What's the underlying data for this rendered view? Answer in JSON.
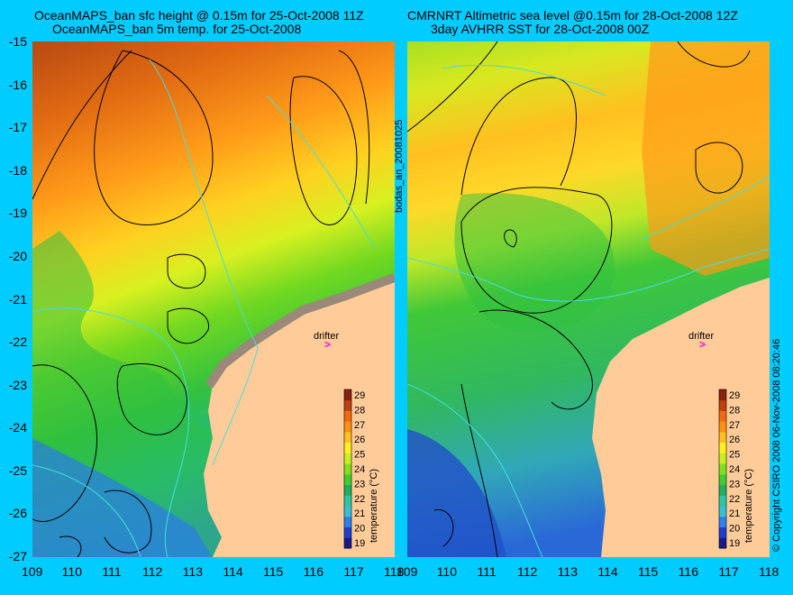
{
  "left_panel": {
    "title_line1": "OceanMAPS_ban sfc height @ 0.15m for 25-Oct-2008 11Z",
    "title_line2": "OceanMAPS_ban 5m temp. for 25-Oct-2008",
    "drifter_label": "drifter",
    "drifter_marker": ">"
  },
  "right_panel": {
    "title_line1": "CMRNRT Altimetric sea level  @0.15m  for 28-Oct-2008 12Z",
    "title_line2": "3day AVHRR SST for 28-Oct-2008 00Z",
    "drifter_label": "drifter",
    "drifter_marker": ">"
  },
  "center_vertical_label": "bodas_an_20081025",
  "right_vertical_label": "© Copyright CSIRO 2008   06-Nov-2008 08:20:46",
  "axes": {
    "y_ticks": [
      "-15",
      "-16",
      "-17",
      "-18",
      "-19",
      "-20",
      "-21",
      "-22",
      "-23",
      "-24",
      "-25",
      "-26",
      "-27"
    ],
    "x_ticks": [
      "109",
      "110",
      "111",
      "112",
      "113",
      "114",
      "115",
      "116",
      "117",
      "118"
    ],
    "x_ticks_right_first": "109"
  },
  "colorbar": {
    "label": "temperature (°C)",
    "ticks": [
      "29",
      "28",
      "27",
      "26",
      "25",
      "24",
      "23",
      "22",
      "21",
      "20",
      "19"
    ],
    "colors": [
      "#1a1a8a",
      "#1f3fcf",
      "#2f7ff0",
      "#38bfd8",
      "#2ac7a0",
      "#1fb060",
      "#3fcf30",
      "#80e020",
      "#c8f020",
      "#fff020",
      "#ffc020",
      "#ff9010",
      "#f06a10",
      "#c04010",
      "#8a2010"
    ]
  },
  "colors": {
    "background": "#00ccff",
    "land": "#ffcc99",
    "drifter": "#ff00ff",
    "coast_line": "#44dddd"
  }
}
